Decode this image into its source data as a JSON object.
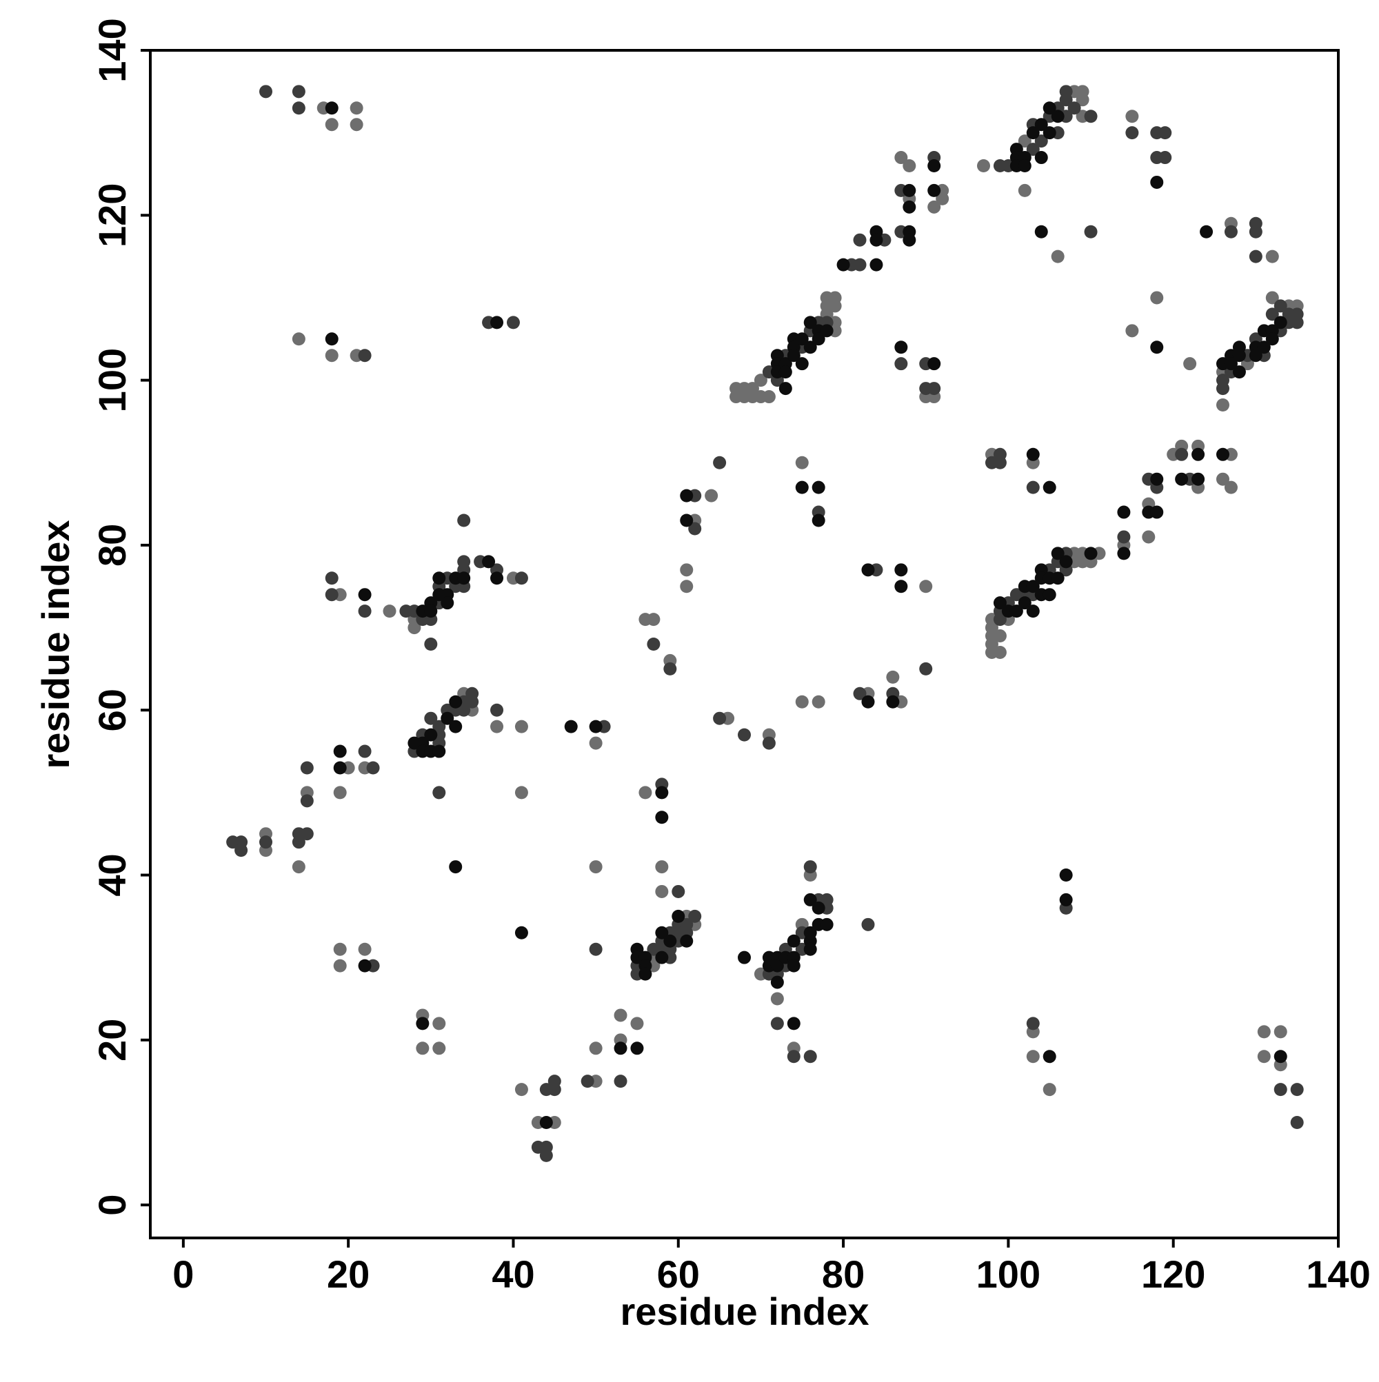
{
  "chart_data": {
    "type": "scatter",
    "xlabel": "residue index",
    "ylabel": "residue index",
    "xlim": [
      -4,
      140
    ],
    "ylim": [
      -4,
      140
    ],
    "xticks": [
      0,
      20,
      40,
      60,
      80,
      100,
      120,
      140
    ],
    "yticks": [
      0,
      20,
      40,
      60,
      80,
      100,
      120,
      140
    ],
    "series": [
      {
        "color": "#6e6e6e",
        "x": [
          17,
          18,
          21,
          21,
          14,
          18,
          21,
          19,
          25,
          28,
          28,
          40,
          34,
          35,
          38,
          41,
          50,
          15,
          19,
          20,
          22,
          41,
          10,
          10,
          14,
          19,
          19,
          22,
          29,
          29,
          31,
          31,
          41,
          43,
          45,
          50,
          50,
          50,
          53,
          53,
          55,
          57,
          57,
          61,
          62,
          58,
          58,
          56,
          56,
          57,
          59,
          61,
          61,
          62,
          64,
          66,
          71,
          70,
          72,
          74,
          75,
          76,
          75,
          75,
          77,
          83,
          86,
          87,
          90,
          67,
          67,
          68,
          68,
          69,
          69,
          70,
          70,
          71,
          78,
          78,
          78,
          79,
          79,
          79,
          79,
          87,
          88,
          88,
          90,
          91,
          91,
          92,
          92,
          97,
          102,
          108,
          109,
          109,
          109,
          102,
          106,
          115,
          127,
          132,
          115,
          118,
          122,
          126,
          126,
          129,
          132,
          134,
          135,
          98,
          98,
          98,
          98,
          98,
          99,
          99,
          100,
          108,
          108,
          109,
          109,
          110,
          111,
          98,
          103,
          114,
          117,
          117,
          120,
          121,
          123,
          123,
          126,
          127,
          127,
          103,
          103,
          105,
          131,
          131,
          133,
          133
        ],
        "y": [
          133,
          131,
          133,
          131,
          105,
          103,
          103,
          74,
          72,
          71,
          70,
          76,
          62,
          60,
          58,
          58,
          56,
          50,
          50,
          53,
          53,
          50,
          45,
          43,
          41,
          31,
          29,
          31,
          23,
          19,
          22,
          19,
          14,
          10,
          10,
          15,
          19,
          41,
          23,
          20,
          22,
          30,
          29,
          35,
          34,
          38,
          41,
          50,
          71,
          71,
          66,
          77,
          75,
          83,
          86,
          59,
          57,
          28,
          25,
          19,
          34,
          40,
          90,
          61,
          61,
          62,
          64,
          61,
          75,
          98,
          99,
          98,
          99,
          98,
          99,
          98,
          100,
          98,
          110,
          109,
          108,
          110,
          109,
          107,
          106,
          127,
          126,
          122,
          98,
          98,
          121,
          123,
          122,
          126,
          129,
          135,
          135,
          134,
          132,
          123,
          115,
          132,
          119,
          115,
          106,
          110,
          102,
          97,
          101,
          102,
          110,
          109,
          109,
          67,
          68,
          69,
          70,
          71,
          67,
          69,
          71,
          79,
          78,
          79,
          78,
          78,
          79,
          91,
          90,
          80,
          85,
          81,
          91,
          92,
          92,
          87,
          88,
          91,
          87,
          21,
          18,
          14,
          21,
          18,
          21,
          17
        ]
      },
      {
        "color": "#3c3c3c",
        "x": [
          10,
          14,
          14,
          22,
          37,
          40,
          34,
          18,
          18,
          22,
          27,
          28,
          29,
          30,
          30,
          31,
          31,
          32,
          33,
          34,
          34,
          34,
          36,
          38,
          41,
          28,
          29,
          30,
          31,
          31,
          31,
          32,
          33,
          34,
          34,
          35,
          35,
          38,
          51,
          15,
          15,
          22,
          23,
          31,
          6,
          7,
          7,
          10,
          14,
          14,
          15,
          23,
          43,
          44,
          44,
          44,
          45,
          45,
          49,
          50,
          53,
          55,
          55,
          57,
          58,
          58,
          59,
          59,
          59,
          60,
          60,
          60,
          61,
          61,
          62,
          60,
          58,
          57,
          59,
          62,
          62,
          65,
          65,
          68,
          71,
          71,
          72,
          72,
          73,
          73,
          74,
          75,
          75,
          76,
          76,
          77,
          78,
          78,
          83,
          77,
          82,
          86,
          90,
          84,
          71,
          72,
          73,
          75,
          76,
          77,
          78,
          81,
          82,
          82,
          85,
          87,
          87,
          87,
          90,
          90,
          91,
          91,
          99,
          100,
          103,
          103,
          104,
          105,
          106,
          106,
          107,
          107,
          107,
          108,
          110,
          110,
          115,
          118,
          118,
          119,
          119,
          127,
          130,
          130,
          130,
          126,
          126,
          127,
          129,
          130,
          131,
          132,
          133,
          133,
          134,
          134,
          135,
          135,
          99,
          99,
          100,
          101,
          102,
          103,
          105,
          106,
          107,
          107,
          98,
          99,
          99,
          103,
          114,
          117,
          118,
          121,
          122,
          103,
          107,
          133,
          135,
          135
        ],
        "y": [
          135,
          135,
          133,
          103,
          107,
          107,
          83,
          76,
          74,
          72,
          72,
          72,
          71,
          71,
          68,
          73,
          75,
          76,
          75,
          75,
          77,
          78,
          78,
          77,
          76,
          55,
          57,
          59,
          58,
          57,
          56,
          60,
          60,
          61,
          60,
          62,
          61,
          60,
          58,
          53,
          49,
          55,
          53,
          50,
          44,
          44,
          43,
          44,
          45,
          44,
          45,
          29,
          7,
          14,
          7,
          6,
          15,
          14,
          15,
          31,
          15,
          29,
          28,
          31,
          32,
          31,
          33,
          31,
          30,
          34,
          33,
          32,
          34,
          33,
          35,
          38,
          51,
          68,
          65,
          86,
          82,
          90,
          59,
          57,
          56,
          28,
          28,
          22,
          31,
          29,
          18,
          33,
          31,
          41,
          18,
          37,
          37,
          36,
          34,
          84,
          62,
          62,
          65,
          77,
          101,
          100,
          103,
          104,
          106,
          107,
          107,
          114,
          117,
          114,
          117,
          123,
          118,
          102,
          102,
          99,
          99,
          127,
          126,
          126,
          131,
          128,
          129,
          132,
          133,
          130,
          135,
          134,
          132,
          133,
          132,
          118,
          130,
          130,
          127,
          130,
          127,
          118,
          119,
          118,
          115,
          99,
          100,
          101,
          103,
          105,
          103,
          108,
          109,
          106,
          108,
          107,
          108,
          107,
          72,
          71,
          73,
          74,
          74,
          74,
          77,
          78,
          79,
          77,
          90,
          91,
          90,
          87,
          81,
          88,
          87,
          91,
          88,
          22,
          36,
          14,
          14,
          10
        ]
      },
      {
        "color": "#0d0d0d",
        "x": [
          18,
          18,
          38,
          22,
          29,
          30,
          30,
          31,
          31,
          32,
          32,
          33,
          34,
          37,
          38,
          28,
          29,
          29,
          30,
          30,
          31,
          32,
          33,
          33,
          47,
          50,
          19,
          19,
          33,
          22,
          29,
          41,
          44,
          53,
          55,
          55,
          55,
          56,
          56,
          56,
          58,
          58,
          59,
          60,
          61,
          58,
          58,
          61,
          61,
          68,
          71,
          71,
          72,
          72,
          72,
          73,
          74,
          74,
          74,
          74,
          76,
          76,
          76,
          76,
          77,
          77,
          78,
          75,
          77,
          77,
          83,
          86,
          83,
          87,
          87,
          72,
          72,
          72,
          73,
          73,
          73,
          74,
          74,
          74,
          75,
          75,
          76,
          76,
          77,
          77,
          78,
          80,
          84,
          84,
          84,
          88,
          88,
          88,
          88,
          87,
          91,
          91,
          91,
          101,
          101,
          101,
          102,
          102,
          103,
          104,
          104,
          105,
          105,
          106,
          104,
          118,
          124,
          118,
          126,
          127,
          127,
          128,
          128,
          128,
          130,
          130,
          131,
          131,
          132,
          132,
          133,
          99,
          100,
          101,
          102,
          102,
          103,
          103,
          104,
          104,
          104,
          105,
          105,
          106,
          106,
          107,
          110,
          103,
          105,
          114,
          114,
          117,
          118,
          118,
          121,
          123,
          123,
          126,
          105,
          107,
          107,
          133
        ],
        "y": [
          133,
          105,
          107,
          74,
          72,
          73,
          72,
          74,
          76,
          74,
          73,
          76,
          76,
          78,
          76,
          56,
          56,
          55,
          57,
          55,
          55,
          59,
          61,
          58,
          58,
          58,
          55,
          53,
          41,
          29,
          22,
          33,
          10,
          19,
          19,
          31,
          30,
          30,
          29,
          28,
          33,
          30,
          32,
          35,
          32,
          50,
          47,
          86,
          83,
          30,
          30,
          29,
          30,
          29,
          27,
          30,
          32,
          30,
          29,
          22,
          32,
          33,
          31,
          37,
          34,
          36,
          34,
          87,
          87,
          83,
          61,
          61,
          77,
          77,
          75,
          103,
          102,
          101,
          102,
          101,
          99,
          105,
          104,
          103,
          105,
          102,
          107,
          104,
          106,
          105,
          106,
          114,
          118,
          117,
          114,
          123,
          121,
          118,
          117,
          104,
          102,
          126,
          123,
          128,
          127,
          126,
          127,
          126,
          130,
          131,
          127,
          133,
          130,
          132,
          118,
          124,
          118,
          104,
          102,
          103,
          102,
          104,
          103,
          101,
          104,
          103,
          106,
          104,
          106,
          105,
          107,
          73,
          72,
          72,
          75,
          73,
          75,
          72,
          77,
          76,
          74,
          76,
          74,
          79,
          76,
          78,
          79,
          91,
          87,
          84,
          79,
          84,
          88,
          84,
          88,
          91,
          88,
          91,
          18,
          40,
          37,
          18
        ]
      }
    ]
  }
}
